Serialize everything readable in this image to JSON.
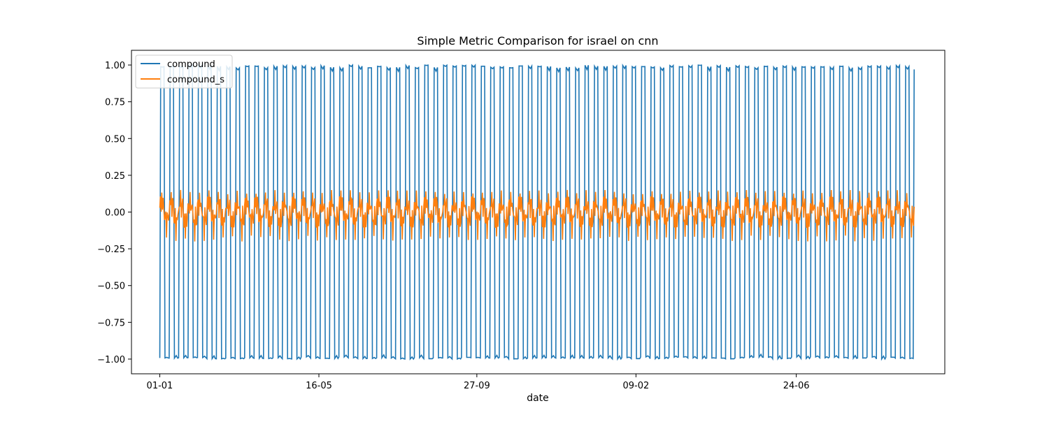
{
  "chart_data": {
    "type": "line",
    "title": "Simple Metric Comparison for israel on cnn",
    "xlabel": "date",
    "ylabel": "",
    "x_ticks": [
      "01-01",
      "16-05",
      "27-09",
      "09-02",
      "24-06"
    ],
    "y_ticks": [
      "1.00",
      "0.75",
      "0.50",
      "0.25",
      "0.00",
      "−0.25",
      "−0.50",
      "−0.75",
      "−1.00"
    ],
    "y_tick_values": [
      1.0,
      0.75,
      0.5,
      0.25,
      0.0,
      -0.25,
      -0.5,
      -0.75,
      -1.0
    ],
    "ylim": [
      -1.1,
      1.1
    ],
    "xlim_days": [
      -24,
      666
    ],
    "x_tick_days": [
      0,
      135,
      269,
      404,
      540
    ],
    "data_end_day": 640,
    "grid": false,
    "legend_position": "upper-left",
    "series": [
      {
        "name": "compound",
        "color": "#1f77b4",
        "pattern": "oscillates between about -1.00 and 1.00 with roughly 80 full cycles",
        "amplitude": 1.0,
        "cycles": 80
      },
      {
        "name": "compound_s",
        "color": "#ff7f0e",
        "pattern": "small oscillation around 0.00, roughly between -0.20 and 0.15",
        "min": -0.2,
        "max": 0.15,
        "cycles": 80
      }
    ]
  }
}
